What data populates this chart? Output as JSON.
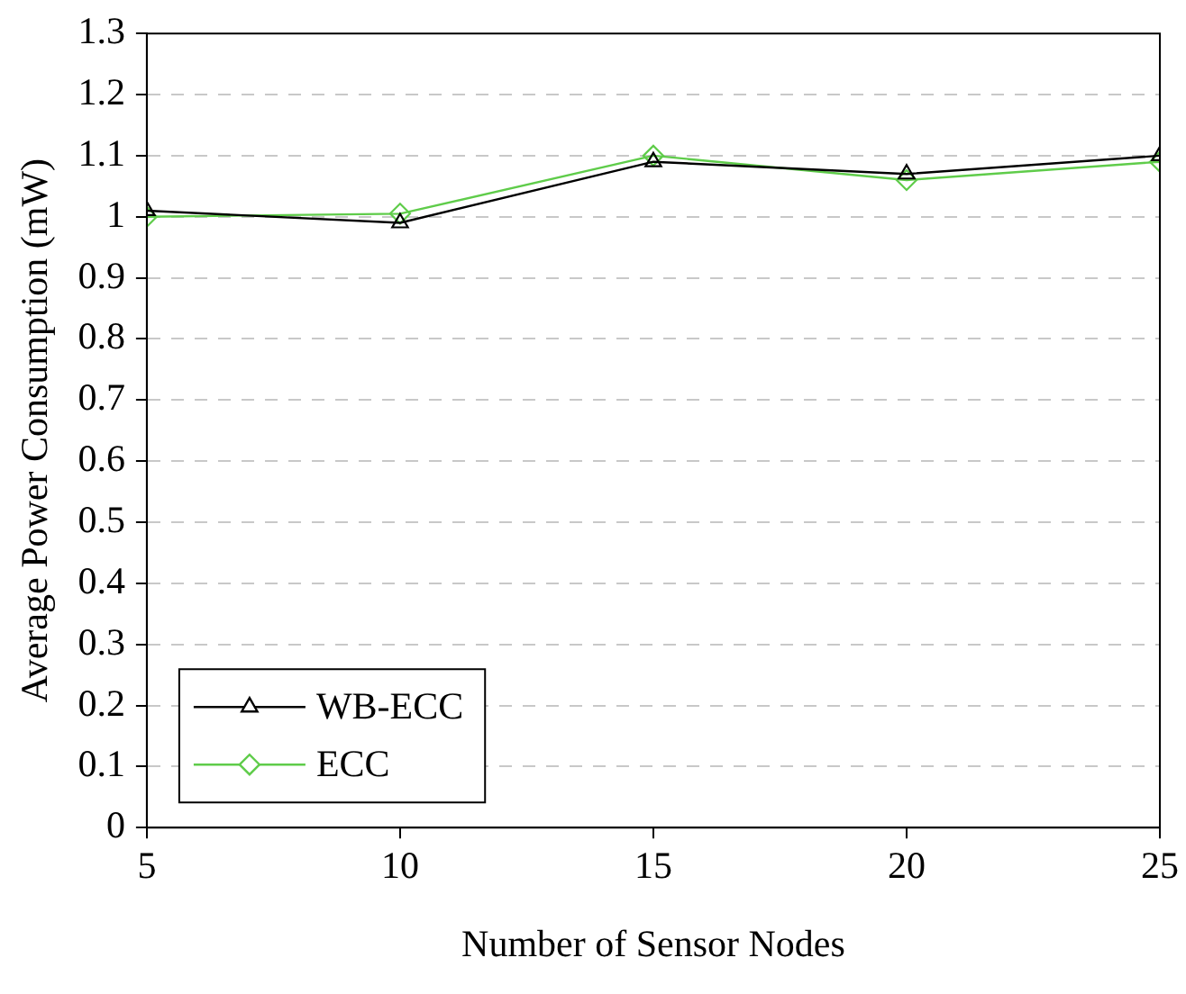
{
  "chart_data": {
    "type": "line",
    "xlabel": "Number of Sensor Nodes",
    "ylabel": "Average Power Consumption (mW)",
    "x": [
      5,
      10,
      15,
      20,
      25
    ],
    "series": [
      {
        "name": "WB-ECC",
        "color": "#000000",
        "marker": "triangle",
        "values": [
          1.01,
          0.99,
          1.09,
          1.07,
          1.1
        ]
      },
      {
        "name": "ECC",
        "color": "#5fcc4a",
        "marker": "diamond",
        "values": [
          1.0,
          1.005,
          1.1,
          1.06,
          1.09
        ]
      }
    ],
    "xlim": [
      5,
      25
    ],
    "xticks": [
      5,
      10,
      15,
      20,
      25
    ],
    "ylim": [
      0,
      1.3
    ],
    "yticks": [
      0,
      0.1,
      0.2,
      0.3,
      0.4,
      0.5,
      0.6,
      0.7,
      0.8,
      0.9,
      1,
      1.1,
      1.2,
      1.3
    ],
    "grid": "y",
    "legend": "bottom left"
  }
}
